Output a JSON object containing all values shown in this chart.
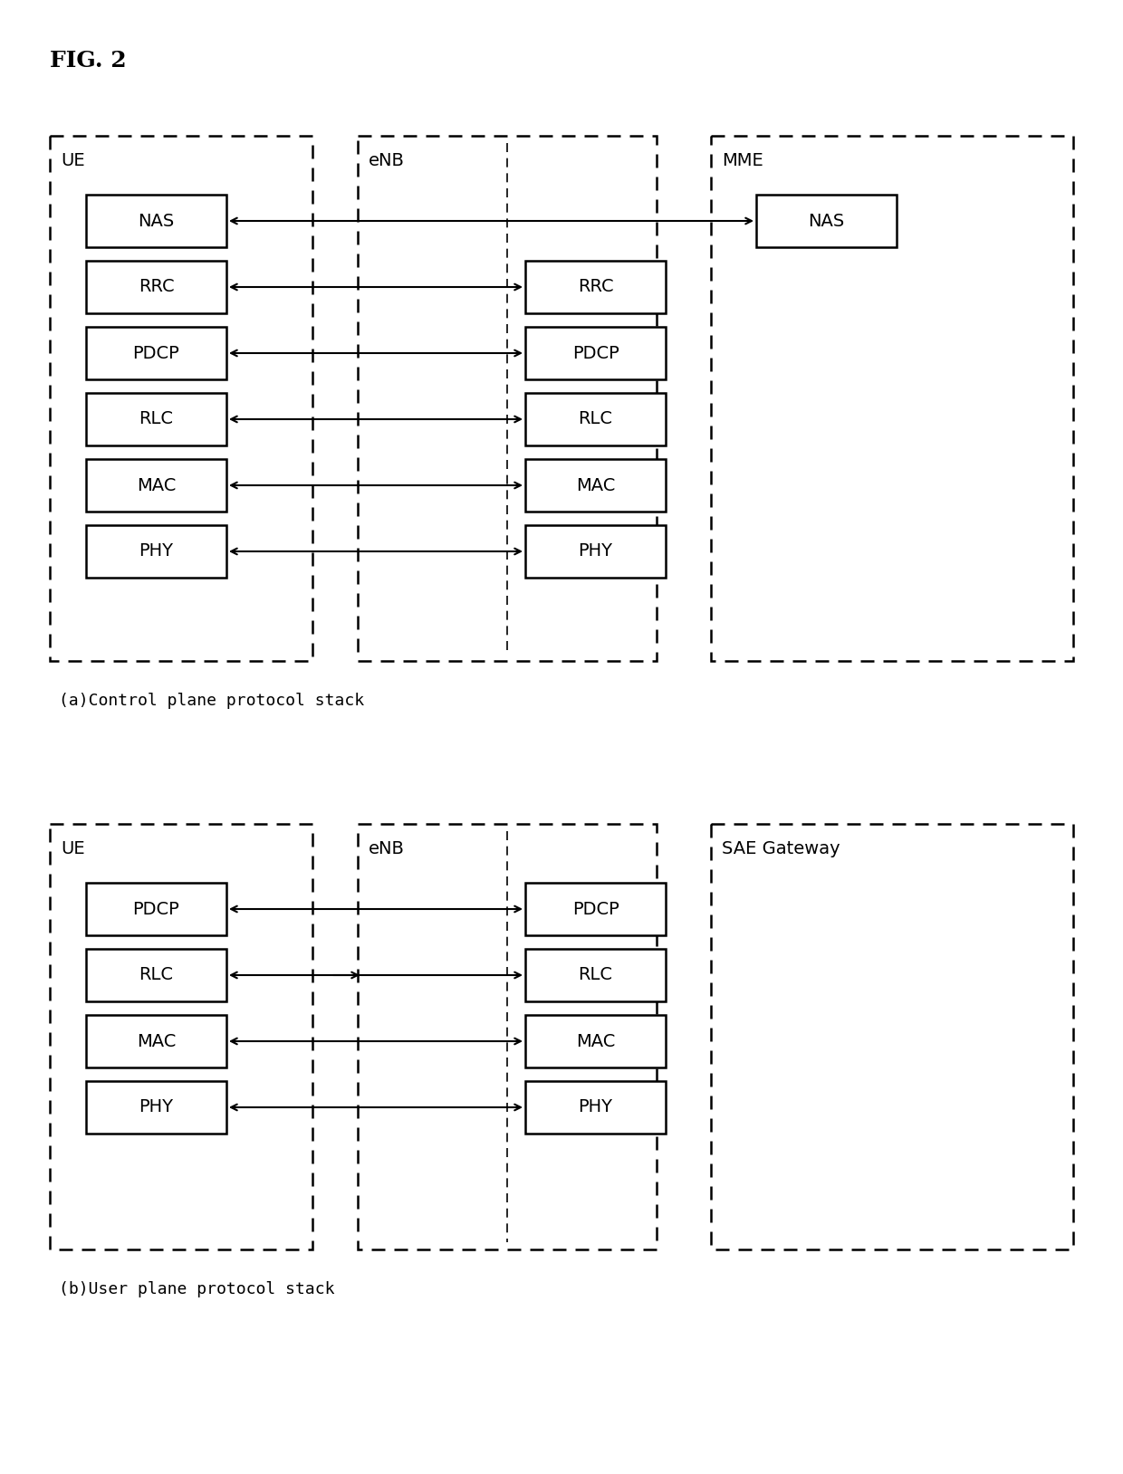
{
  "fig_label": "FIG. 2",
  "background_color": "#ffffff",
  "fig_size": [
    12.4,
    16.28
  ],
  "dpi": 100,
  "diagram_a": {
    "caption": "(a)Control plane protocol stack",
    "ue_label": "UE",
    "enb_label": "eNB",
    "mme_label": "MME",
    "ue_layers": [
      "NAS",
      "RRC",
      "PDCP",
      "RLC",
      "MAC",
      "PHY"
    ],
    "enb_layers": [
      "RRC",
      "PDCP",
      "RLC",
      "MAC",
      "PHY"
    ],
    "mme_layers": [
      "NAS"
    ]
  },
  "diagram_b": {
    "caption": "(b)User plane protocol stack",
    "ue_label": "UE",
    "enb_label": "eNB",
    "sae_label": "SAE Gateway",
    "ue_layers": [
      "PDCP",
      "RLC",
      "MAC",
      "PHY"
    ],
    "enb_layers": [
      "PDCP",
      "RLC",
      "MAC",
      "PHY"
    ]
  }
}
